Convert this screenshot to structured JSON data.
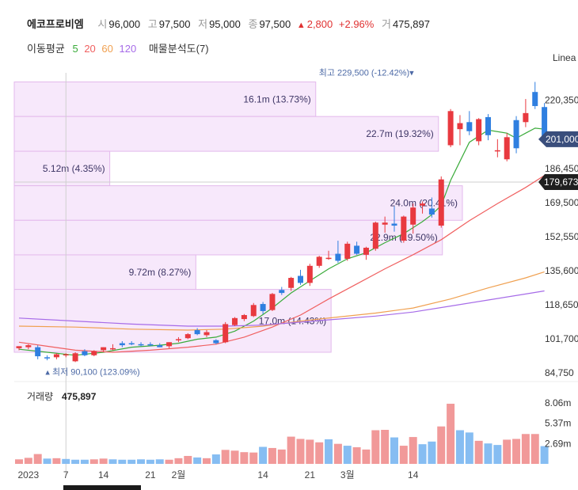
{
  "header": {
    "symbol": "에코프로비엠",
    "open_label": "시",
    "open_value": "96,000",
    "high_label": "고",
    "high_value": "97,500",
    "low_label": "저",
    "low_value": "95,000",
    "close_label": "종",
    "close_value": "97,500",
    "change_arrow": "▲",
    "change_value": "2,800",
    "change_pct": "+2.96%",
    "volume_label": "거",
    "volume_value": "475,897"
  },
  "ma_legend": {
    "title": "이동평균",
    "items": [
      {
        "label": "5",
        "color": "#3aab3a"
      },
      {
        "label": "20",
        "color": "#f06060"
      },
      {
        "label": "60",
        "color": "#f0a050"
      },
      {
        "label": "120",
        "color": "#a66be8"
      }
    ],
    "extra": "매물분석도(7)"
  },
  "scale_label": "Linea",
  "colors": {
    "up": "#e8393f",
    "down": "#2f7fe0",
    "vp_fill": "#f7e8fb",
    "vp_stroke": "#e3b9ec",
    "vol_up": "#f19999",
    "vol_down": "#86bdf2"
  },
  "chart_data": {
    "type": "candlestick",
    "title": "",
    "ylim": [
      84750,
      236000
    ],
    "y_ticks": [
      "220,350",
      "186,450",
      "169,500",
      "152,550",
      "135,600",
      "118,650",
      "101,700",
      "84,750"
    ],
    "x_tick_labels": [
      {
        "label": "2023",
        "index": 1
      },
      {
        "label": "7",
        "index": 5
      },
      {
        "label": "14",
        "index": 9
      },
      {
        "label": "21",
        "index": 14
      },
      {
        "label": "2월",
        "index": 17
      },
      {
        "label": "14",
        "index": 26
      },
      {
        "label": "21",
        "index": 31
      },
      {
        "label": "3월",
        "index": 35
      },
      {
        "label": "14",
        "index": 42
      }
    ],
    "crosshair_index": 5,
    "crosshair_price": 179673,
    "crosshair_price_label": "179,673",
    "last_price": 201000,
    "last_price_label": "201,000",
    "max_label": "최고 229,500 (-12.42%)▾",
    "max_index": 42,
    "max_price": 229500,
    "min_label": "▴ 최저 90,100 (123.09%)",
    "min_index": 4,
    "min_price": 90100,
    "candles": [
      {
        "o": 97000,
        "h": 98000,
        "l": 96000,
        "c": 98000
      },
      {
        "o": 97500,
        "h": 99000,
        "l": 96500,
        "c": 98500
      },
      {
        "o": 97500,
        "h": 98500,
        "l": 91500,
        "c": 93000
      },
      {
        "o": 92500,
        "h": 93500,
        "l": 91000,
        "c": 92000
      },
      {
        "o": 92500,
        "h": 94500,
        "l": 91500,
        "c": 94000
      },
      {
        "o": 93500,
        "h": 94500,
        "l": 92500,
        "c": 94000
      },
      {
        "o": 90500,
        "h": 95000,
        "l": 90100,
        "c": 94500
      },
      {
        "o": 95500,
        "h": 96500,
        "l": 93000,
        "c": 93500
      },
      {
        "o": 93500,
        "h": 96000,
        "l": 93000,
        "c": 95500
      },
      {
        "o": 96000,
        "h": 97500,
        "l": 95000,
        "c": 97500
      },
      {
        "o": 97000,
        "h": 99000,
        "l": 96000,
        "c": 97000
      },
      {
        "o": 99500,
        "h": 100500,
        "l": 97500,
        "c": 98500
      },
      {
        "o": 99500,
        "h": 100500,
        "l": 98500,
        "c": 99000
      },
      {
        "o": 99000,
        "h": 100000,
        "l": 98000,
        "c": 98500
      },
      {
        "o": 99000,
        "h": 100000,
        "l": 98000,
        "c": 98500
      },
      {
        "o": 98500,
        "h": 99500,
        "l": 97500,
        "c": 97500
      },
      {
        "o": 98000,
        "h": 100000,
        "l": 97000,
        "c": 100000
      },
      {
        "o": 101000,
        "h": 102500,
        "l": 100000,
        "c": 101500
      },
      {
        "o": 102000,
        "h": 104500,
        "l": 101500,
        "c": 104000
      },
      {
        "o": 106000,
        "h": 107000,
        "l": 103500,
        "c": 104000
      },
      {
        "o": 103500,
        "h": 106000,
        "l": 102500,
        "c": 105000
      },
      {
        "o": 101000,
        "h": 101500,
        "l": 99000,
        "c": 99500
      },
      {
        "o": 100000,
        "h": 110000,
        "l": 99500,
        "c": 109000
      },
      {
        "o": 108500,
        "h": 112500,
        "l": 108000,
        "c": 112000
      },
      {
        "o": 111500,
        "h": 114000,
        "l": 110500,
        "c": 113500
      },
      {
        "o": 113000,
        "h": 119500,
        "l": 112500,
        "c": 118500
      },
      {
        "o": 119000,
        "h": 120000,
        "l": 114000,
        "c": 115500
      },
      {
        "o": 116000,
        "h": 124500,
        "l": 115500,
        "c": 124000
      },
      {
        "o": 126000,
        "h": 127500,
        "l": 123500,
        "c": 124500
      },
      {
        "o": 127000,
        "h": 132500,
        "l": 125500,
        "c": 132000
      },
      {
        "o": 133000,
        "h": 136000,
        "l": 128500,
        "c": 129500
      },
      {
        "o": 129500,
        "h": 139000,
        "l": 128000,
        "c": 138000
      },
      {
        "o": 138000,
        "h": 143000,
        "l": 137000,
        "c": 142500
      },
      {
        "o": 142000,
        "h": 145500,
        "l": 141000,
        "c": 142000
      },
      {
        "o": 144000,
        "h": 150500,
        "l": 139500,
        "c": 140500
      },
      {
        "o": 141500,
        "h": 150000,
        "l": 140500,
        "c": 149000
      },
      {
        "o": 148000,
        "h": 150000,
        "l": 143500,
        "c": 144000
      },
      {
        "o": 143500,
        "h": 147500,
        "l": 141000,
        "c": 147000
      },
      {
        "o": 146500,
        "h": 160000,
        "l": 145500,
        "c": 159500
      },
      {
        "o": 158500,
        "h": 162500,
        "l": 154500,
        "c": 159500
      },
      {
        "o": 159000,
        "h": 167500,
        "l": 155000,
        "c": 158000
      },
      {
        "o": 150500,
        "h": 163000,
        "l": 149500,
        "c": 162500
      },
      {
        "o": 158500,
        "h": 169000,
        "l": 154000,
        "c": 167000
      },
      {
        "o": 168000,
        "h": 170000,
        "l": 164000,
        "c": 169000
      },
      {
        "o": 166500,
        "h": 172000,
        "l": 162000,
        "c": 163500
      },
      {
        "o": 158000,
        "h": 182500,
        "l": 157000,
        "c": 181000
      },
      {
        "o": 198000,
        "h": 216000,
        "l": 197000,
        "c": 215000
      },
      {
        "o": 206000,
        "h": 213000,
        "l": 198000,
        "c": 209000
      },
      {
        "o": 209500,
        "h": 215000,
        "l": 203000,
        "c": 205000
      },
      {
        "o": 200000,
        "h": 211500,
        "l": 198000,
        "c": 211000
      },
      {
        "o": 212000,
        "h": 213500,
        "l": 200500,
        "c": 203000
      },
      {
        "o": 195000,
        "h": 201000,
        "l": 192000,
        "c": 195500
      },
      {
        "o": 191000,
        "h": 204000,
        "l": 190000,
        "c": 202000
      },
      {
        "o": 210500,
        "h": 212500,
        "l": 194000,
        "c": 196500
      },
      {
        "o": 209500,
        "h": 221000,
        "l": 207000,
        "c": 214000
      },
      {
        "o": 224500,
        "h": 229500,
        "l": 216000,
        "c": 217500
      },
      {
        "o": 217000,
        "h": 219000,
        "l": 201000,
        "c": 201000
      }
    ],
    "ma": [
      {
        "period": "5",
        "color": "#3aab3a",
        "points": [
          [
            0,
            96500
          ],
          [
            3,
            95000
          ],
          [
            6,
            93500
          ],
          [
            9,
            95000
          ],
          [
            12,
            97500
          ],
          [
            15,
            98500
          ],
          [
            17,
            99500
          ],
          [
            19,
            101500
          ],
          [
            21,
            102500
          ],
          [
            23,
            105500
          ],
          [
            25,
            110500
          ],
          [
            27,
            117000
          ],
          [
            29,
            124500
          ],
          [
            31,
            130500
          ],
          [
            33,
            136500
          ],
          [
            35,
            141500
          ],
          [
            37,
            144500
          ],
          [
            39,
            149500
          ],
          [
            41,
            154000
          ],
          [
            43,
            160000
          ],
          [
            44,
            163500
          ],
          [
            45,
            168000
          ],
          [
            46,
            180500
          ],
          [
            47,
            190000
          ],
          [
            48,
            199500
          ],
          [
            50,
            205500
          ],
          [
            52,
            204000
          ],
          [
            53,
            201500
          ],
          [
            54,
            204000
          ],
          [
            55,
            206500
          ],
          [
            56,
            206000
          ]
        ]
      },
      {
        "period": "20",
        "color": "#f06060",
        "points": [
          [
            0,
            100000
          ],
          [
            3,
            98000
          ],
          [
            6,
            96000
          ],
          [
            10,
            95000
          ],
          [
            14,
            96000
          ],
          [
            18,
            97500
          ],
          [
            21,
            99000
          ],
          [
            24,
            102500
          ],
          [
            27,
            107500
          ],
          [
            30,
            113500
          ],
          [
            33,
            121500
          ],
          [
            36,
            129000
          ],
          [
            39,
            136500
          ],
          [
            42,
            143500
          ],
          [
            45,
            151000
          ],
          [
            48,
            160500
          ],
          [
            51,
            169000
          ],
          [
            54,
            177000
          ],
          [
            56,
            183000
          ]
        ]
      },
      {
        "period": "60",
        "color": "#f0a050",
        "points": [
          [
            0,
            108000
          ],
          [
            6,
            107500
          ],
          [
            12,
            106500
          ],
          [
            18,
            106000
          ],
          [
            22,
            106500
          ],
          [
            26,
            108000
          ],
          [
            30,
            110500
          ],
          [
            34,
            112500
          ],
          [
            38,
            114500
          ],
          [
            42,
            117000
          ],
          [
            46,
            121500
          ],
          [
            50,
            127000
          ],
          [
            54,
            132000
          ],
          [
            56,
            135000
          ]
        ]
      },
      {
        "period": "120",
        "color": "#a66be8",
        "points": [
          [
            0,
            112000
          ],
          [
            6,
            110500
          ],
          [
            12,
            109000
          ],
          [
            18,
            108000
          ],
          [
            22,
            108000
          ],
          [
            26,
            108500
          ],
          [
            30,
            110000
          ],
          [
            34,
            111500
          ],
          [
            38,
            113000
          ],
          [
            42,
            115000
          ],
          [
            46,
            118000
          ],
          [
            50,
            121000
          ],
          [
            54,
            124000
          ],
          [
            56,
            125500
          ]
        ]
      }
    ],
    "volume_profile": [
      {
        "label": "16.1m (13.73%)",
        "low": 212300,
        "high": 229500,
        "pct": 13.73
      },
      {
        "label": "22.7m (19.32%)",
        "low": 195000,
        "high": 212300,
        "pct": 19.32
      },
      {
        "label": "5.12m (4.35%)",
        "low": 177850,
        "high": 195000,
        "pct": 4.35
      },
      {
        "label": "24.0m (20.41%)",
        "low": 160650,
        "high": 177850,
        "pct": 20.41
      },
      {
        "label": "22.9m (19.50%)",
        "low": 143450,
        "high": 160650,
        "pct": 19.5
      },
      {
        "label": "9.72m (8.27%)",
        "low": 126250,
        "high": 143450,
        "pct": 8.27
      },
      {
        "label": "17.0m (14.43%)",
        "low": 95000,
        "high": 126250,
        "pct": 14.43
      }
    ],
    "volume": {
      "label": "거래량",
      "value": "475,897",
      "ylim": [
        0,
        9000000
      ],
      "y_ticks": [
        "8.06m",
        "5.37m",
        "2.69m"
      ],
      "values": [
        600000.0,
        800000.0,
        1300000.0,
        700000.0,
        750000.0,
        650000.0,
        550000.0,
        550000.0,
        600000.0,
        700000.0,
        600000.0,
        550000.0,
        550000.0,
        600000.0,
        550000.0,
        600000.0,
        550000.0,
        750000.0,
        1050000.0,
        850000.0,
        750000.0,
        1250000.0,
        1850000.0,
        1750000.0,
        1550000.0,
        1500000.0,
        2250000.0,
        2100000.0,
        1900000.0,
        3600000.0,
        3300000.0,
        3200000.0,
        2850000.0,
        3250000.0,
        2650000.0,
        2400000.0,
        2200000.0,
        1900000.0,
        4450000.0,
        4500000.0,
        3500000.0,
        2400000.0,
        3550000.0,
        2600000.0,
        2950000.0,
        4950000.0,
        7950000.0,
        4450000.0,
        4150000.0,
        3050000.0,
        2700000.0,
        2500000.0,
        3200000.0,
        3300000.0,
        3950000.0,
        3950000.0,
        2350000.0
      ],
      "dirs": [
        "u",
        "u",
        "u",
        "d",
        "u",
        "d",
        "d",
        "d",
        "u",
        "u",
        "d",
        "d",
        "d",
        "d",
        "d",
        "d",
        "u",
        "u",
        "u",
        "d",
        "u",
        "d",
        "u",
        "u",
        "u",
        "u",
        "d",
        "u",
        "u",
        "u",
        "u",
        "u",
        "u",
        "d",
        "u",
        "d",
        "u",
        "u",
        "u",
        "u",
        "d",
        "u",
        "u",
        "d",
        "d",
        "u",
        "u",
        "d",
        "d",
        "u",
        "d",
        "d",
        "u",
        "u",
        "u",
        "u",
        "d"
      ]
    }
  }
}
